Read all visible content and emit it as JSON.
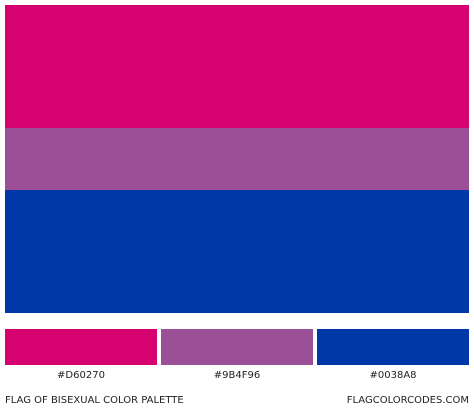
{
  "palette": {
    "swatches": [
      {
        "hex": "#D60270"
      },
      {
        "hex": "#9B4F96"
      },
      {
        "hex": "#0038A8"
      }
    ]
  },
  "footer": {
    "title": "FLAG OF BISEXUAL COLOR PALETTE",
    "site": "FLAGCOLORCODES.COM"
  }
}
